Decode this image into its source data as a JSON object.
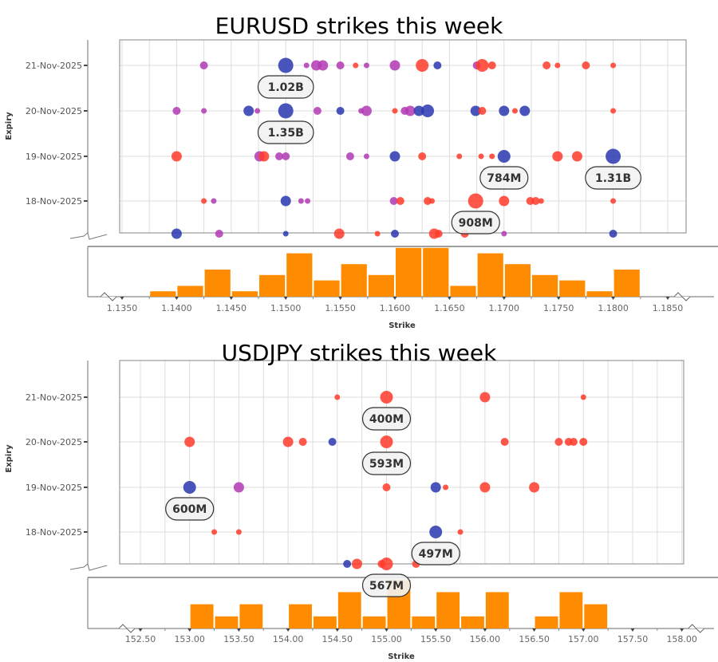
{
  "colors": {
    "blue": "#2a37b0",
    "purple": "#b23ab4",
    "red": "#ff3b2b",
    "histogram": "#ff8c00",
    "label_fill": "#f2f2f2",
    "grid": "#dddddd"
  },
  "chart_data": [
    {
      "type": "scatter",
      "title": "EURUSD strikes this week",
      "xlabel": "Strike",
      "ylabel": "Expiry",
      "y_categories": [
        "18-Nov-2025",
        "19-Nov-2025",
        "20-Nov-2025",
        "21-Nov-2025"
      ],
      "x_ticks": [
        "1.1350",
        "1.1400",
        "1.1450",
        "1.1500",
        "1.1550",
        "1.1600",
        "1.1650",
        "1.1700",
        "1.1750",
        "1.1800",
        "1.1850"
      ],
      "xlim": [
        1.135,
        1.185
      ],
      "grid": true,
      "point_size_scale": "relative 1-5",
      "points": [
        {
          "strike": 1.1425,
          "expiry": "21-Nov-2025",
          "color": "purple",
          "size": 2
        },
        {
          "strike": 1.15,
          "expiry": "21-Nov-2025",
          "color": "blue",
          "size": 5
        },
        {
          "strike": 1.1519,
          "expiry": "21-Nov-2025",
          "color": "purple",
          "size": 1
        },
        {
          "strike": 1.1528,
          "expiry": "21-Nov-2025",
          "color": "purple",
          "size": 3
        },
        {
          "strike": 1.1534,
          "expiry": "21-Nov-2025",
          "color": "purple",
          "size": 3
        },
        {
          "strike": 1.155,
          "expiry": "21-Nov-2025",
          "color": "purple",
          "size": 2
        },
        {
          "strike": 1.1564,
          "expiry": "21-Nov-2025",
          "color": "red",
          "size": 1
        },
        {
          "strike": 1.1574,
          "expiry": "21-Nov-2025",
          "color": "purple",
          "size": 1
        },
        {
          "strike": 1.16,
          "expiry": "21-Nov-2025",
          "color": "purple",
          "size": 3
        },
        {
          "strike": 1.1625,
          "expiry": "21-Nov-2025",
          "color": "red",
          "size": 4
        },
        {
          "strike": 1.1639,
          "expiry": "21-Nov-2025",
          "color": "blue",
          "size": 2
        },
        {
          "strike": 1.1675,
          "expiry": "21-Nov-2025",
          "color": "purple",
          "size": 2
        },
        {
          "strike": 1.168,
          "expiry": "21-Nov-2025",
          "color": "red",
          "size": 4
        },
        {
          "strike": 1.1689,
          "expiry": "21-Nov-2025",
          "color": "red",
          "size": 2
        },
        {
          "strike": 1.1739,
          "expiry": "21-Nov-2025",
          "color": "red",
          "size": 2
        },
        {
          "strike": 1.1749,
          "expiry": "21-Nov-2025",
          "color": "red",
          "size": 1
        },
        {
          "strike": 1.1775,
          "expiry": "21-Nov-2025",
          "color": "red",
          "size": 2
        },
        {
          "strike": 1.18,
          "expiry": "21-Nov-2025",
          "color": "red",
          "size": 1
        },
        {
          "strike": 1.14,
          "expiry": "20-Nov-2025",
          "color": "purple",
          "size": 2
        },
        {
          "strike": 1.1425,
          "expiry": "20-Nov-2025",
          "color": "purple",
          "size": 1
        },
        {
          "strike": 1.1466,
          "expiry": "20-Nov-2025",
          "color": "blue",
          "size": 3
        },
        {
          "strike": 1.1474,
          "expiry": "20-Nov-2025",
          "color": "purple",
          "size": 1
        },
        {
          "strike": 1.15,
          "expiry": "20-Nov-2025",
          "color": "blue",
          "size": 5
        },
        {
          "strike": 1.1529,
          "expiry": "20-Nov-2025",
          "color": "purple",
          "size": 2
        },
        {
          "strike": 1.155,
          "expiry": "20-Nov-2025",
          "color": "blue",
          "size": 2
        },
        {
          "strike": 1.1569,
          "expiry": "20-Nov-2025",
          "color": "purple",
          "size": 1
        },
        {
          "strike": 1.1574,
          "expiry": "20-Nov-2025",
          "color": "purple",
          "size": 3
        },
        {
          "strike": 1.16,
          "expiry": "20-Nov-2025",
          "color": "red",
          "size": 1
        },
        {
          "strike": 1.1609,
          "expiry": "20-Nov-2025",
          "color": "purple",
          "size": 2
        },
        {
          "strike": 1.1614,
          "expiry": "20-Nov-2025",
          "color": "purple",
          "size": 3
        },
        {
          "strike": 1.1622,
          "expiry": "20-Nov-2025",
          "color": "blue",
          "size": 3
        },
        {
          "strike": 1.163,
          "expiry": "20-Nov-2025",
          "color": "blue",
          "size": 4
        },
        {
          "strike": 1.1674,
          "expiry": "20-Nov-2025",
          "color": "blue",
          "size": 3
        },
        {
          "strike": 1.168,
          "expiry": "20-Nov-2025",
          "color": "red",
          "size": 2
        },
        {
          "strike": 1.17,
          "expiry": "20-Nov-2025",
          "color": "blue",
          "size": 3
        },
        {
          "strike": 1.171,
          "expiry": "20-Nov-2025",
          "color": "red",
          "size": 1
        },
        {
          "strike": 1.1719,
          "expiry": "20-Nov-2025",
          "color": "blue",
          "size": 3
        },
        {
          "strike": 1.18,
          "expiry": "20-Nov-2025",
          "color": "red",
          "size": 1
        },
        {
          "strike": 1.14,
          "expiry": "19-Nov-2025",
          "color": "red",
          "size": 3
        },
        {
          "strike": 1.1476,
          "expiry": "19-Nov-2025",
          "color": "purple",
          "size": 3
        },
        {
          "strike": 1.148,
          "expiry": "19-Nov-2025",
          "color": "red",
          "size": 3
        },
        {
          "strike": 1.1494,
          "expiry": "19-Nov-2025",
          "color": "purple",
          "size": 2
        },
        {
          "strike": 1.15,
          "expiry": "19-Nov-2025",
          "color": "purple",
          "size": 2
        },
        {
          "strike": 1.1559,
          "expiry": "19-Nov-2025",
          "color": "purple",
          "size": 2
        },
        {
          "strike": 1.1574,
          "expiry": "19-Nov-2025",
          "color": "purple",
          "size": 1
        },
        {
          "strike": 1.16,
          "expiry": "19-Nov-2025",
          "color": "blue",
          "size": 3
        },
        {
          "strike": 1.1625,
          "expiry": "19-Nov-2025",
          "color": "red",
          "size": 2
        },
        {
          "strike": 1.1659,
          "expiry": "19-Nov-2025",
          "color": "red",
          "size": 1
        },
        {
          "strike": 1.1679,
          "expiry": "19-Nov-2025",
          "color": "red",
          "size": 1
        },
        {
          "strike": 1.1689,
          "expiry": "19-Nov-2025",
          "color": "red",
          "size": 1
        },
        {
          "strike": 1.17,
          "expiry": "19-Nov-2025",
          "color": "blue",
          "size": 4
        },
        {
          "strike": 1.1749,
          "expiry": "19-Nov-2025",
          "color": "red",
          "size": 3
        },
        {
          "strike": 1.1767,
          "expiry": "19-Nov-2025",
          "color": "red",
          "size": 3
        },
        {
          "strike": 1.18,
          "expiry": "19-Nov-2025",
          "color": "blue",
          "size": 5
        },
        {
          "strike": 1.1425,
          "expiry": "18-Nov-2025",
          "color": "red",
          "size": 1
        },
        {
          "strike": 1.1434,
          "expiry": "18-Nov-2025",
          "color": "purple",
          "size": 1
        },
        {
          "strike": 1.15,
          "expiry": "18-Nov-2025",
          "color": "blue",
          "size": 3
        },
        {
          "strike": 1.1514,
          "expiry": "18-Nov-2025",
          "color": "purple",
          "size": 1
        },
        {
          "strike": 1.152,
          "expiry": "18-Nov-2025",
          "color": "purple",
          "size": 1
        },
        {
          "strike": 1.1599,
          "expiry": "18-Nov-2025",
          "color": "purple",
          "size": 2
        },
        {
          "strike": 1.1605,
          "expiry": "18-Nov-2025",
          "color": "red",
          "size": 2
        },
        {
          "strike": 1.163,
          "expiry": "18-Nov-2025",
          "color": "red",
          "size": 2
        },
        {
          "strike": 1.1634,
          "expiry": "18-Nov-2025",
          "color": "red",
          "size": 1
        },
        {
          "strike": 1.1674,
          "expiry": "18-Nov-2025",
          "color": "red",
          "size": 5
        },
        {
          "strike": 1.17,
          "expiry": "18-Nov-2025",
          "color": "red",
          "size": 3
        },
        {
          "strike": 1.1724,
          "expiry": "18-Nov-2025",
          "color": "red",
          "size": 2
        },
        {
          "strike": 1.1729,
          "expiry": "18-Nov-2025",
          "color": "red",
          "size": 2
        },
        {
          "strike": 1.1734,
          "expiry": "18-Nov-2025",
          "color": "red",
          "size": 1
        },
        {
          "strike": 1.18,
          "expiry": "18-Nov-2025",
          "color": "red",
          "size": 1
        },
        {
          "strike": 1.14,
          "expiry": "",
          "color": "blue",
          "size": 3
        },
        {
          "strike": 1.1439,
          "expiry": "",
          "color": "purple",
          "size": 2
        },
        {
          "strike": 1.15,
          "expiry": "",
          "color": "blue",
          "size": 1
        },
        {
          "strike": 1.1549,
          "expiry": "",
          "color": "red",
          "size": 3
        },
        {
          "strike": 1.1584,
          "expiry": "",
          "color": "red",
          "size": 1
        },
        {
          "strike": 1.16,
          "expiry": "",
          "color": "blue",
          "size": 2
        },
        {
          "strike": 1.1636,
          "expiry": "",
          "color": "red",
          "size": 3
        },
        {
          "strike": 1.164,
          "expiry": "",
          "color": "red",
          "size": 2
        },
        {
          "strike": 1.1664,
          "expiry": "",
          "color": "red",
          "size": 2
        },
        {
          "strike": 1.17,
          "expiry": "",
          "color": "purple",
          "size": 1
        },
        {
          "strike": 1.18,
          "expiry": "",
          "color": "blue",
          "size": 2
        }
      ],
      "annotations": [
        {
          "strike": 1.15,
          "expiry": "21-Nov-2025",
          "text": "1.02B"
        },
        {
          "strike": 1.15,
          "expiry": "20-Nov-2025",
          "text": "1.35B"
        },
        {
          "strike": 1.17,
          "expiry": "19-Nov-2025",
          "text": "784M"
        },
        {
          "strike": 1.18,
          "expiry": "19-Nov-2025",
          "text": "1.31B"
        },
        {
          "strike": 1.1674,
          "expiry": "18-Nov-2025",
          "text": "908M"
        }
      ],
      "histogram": {
        "bin_start": 1.1375,
        "bin_width": 0.0025,
        "counts": [
          1,
          2,
          5,
          1,
          4,
          8,
          3,
          6,
          4,
          9,
          9,
          2,
          8,
          6,
          4,
          3,
          1,
          5
        ]
      }
    },
    {
      "type": "scatter",
      "title": "USDJPY strikes this week",
      "xlabel": "Strike",
      "ylabel": "Expiry",
      "y_categories": [
        "18-Nov-2025",
        "19-Nov-2025",
        "20-Nov-2025",
        "21-Nov-2025"
      ],
      "x_ticks": [
        "152.50",
        "153.00",
        "153.50",
        "154.00",
        "154.50",
        "155.00",
        "155.50",
        "156.00",
        "156.50",
        "157.00",
        "157.50",
        "158.00"
      ],
      "xlim": [
        152.5,
        158.0
      ],
      "grid": true,
      "point_size_scale": "relative 1-5",
      "points": [
        {
          "strike": 154.5,
          "expiry": "21-Nov-2025",
          "color": "red",
          "size": 1
        },
        {
          "strike": 155.0,
          "expiry": "21-Nov-2025",
          "color": "red",
          "size": 4
        },
        {
          "strike": 156.0,
          "expiry": "21-Nov-2025",
          "color": "red",
          "size": 3
        },
        {
          "strike": 157.0,
          "expiry": "21-Nov-2025",
          "color": "red",
          "size": 1
        },
        {
          "strike": 153.0,
          "expiry": "20-Nov-2025",
          "color": "red",
          "size": 3
        },
        {
          "strike": 154.0,
          "expiry": "20-Nov-2025",
          "color": "red",
          "size": 3
        },
        {
          "strike": 154.15,
          "expiry": "20-Nov-2025",
          "color": "red",
          "size": 2
        },
        {
          "strike": 154.45,
          "expiry": "20-Nov-2025",
          "color": "blue",
          "size": 2
        },
        {
          "strike": 155.0,
          "expiry": "20-Nov-2025",
          "color": "red",
          "size": 4
        },
        {
          "strike": 156.2,
          "expiry": "20-Nov-2025",
          "color": "red",
          "size": 2
        },
        {
          "strike": 156.75,
          "expiry": "20-Nov-2025",
          "color": "red",
          "size": 2
        },
        {
          "strike": 156.85,
          "expiry": "20-Nov-2025",
          "color": "red",
          "size": 2
        },
        {
          "strike": 156.9,
          "expiry": "20-Nov-2025",
          "color": "red",
          "size": 2
        },
        {
          "strike": 157.0,
          "expiry": "20-Nov-2025",
          "color": "red",
          "size": 2
        },
        {
          "strike": 153.0,
          "expiry": "19-Nov-2025",
          "color": "blue",
          "size": 4
        },
        {
          "strike": 153.5,
          "expiry": "19-Nov-2025",
          "color": "purple",
          "size": 3
        },
        {
          "strike": 155.0,
          "expiry": "19-Nov-2025",
          "color": "red",
          "size": 2
        },
        {
          "strike": 155.5,
          "expiry": "19-Nov-2025",
          "color": "blue",
          "size": 3
        },
        {
          "strike": 155.6,
          "expiry": "19-Nov-2025",
          "color": "red",
          "size": 1
        },
        {
          "strike": 156.0,
          "expiry": "19-Nov-2025",
          "color": "red",
          "size": 3
        },
        {
          "strike": 156.5,
          "expiry": "19-Nov-2025",
          "color": "red",
          "size": 3
        },
        {
          "strike": 153.25,
          "expiry": "18-Nov-2025",
          "color": "red",
          "size": 1
        },
        {
          "strike": 153.5,
          "expiry": "18-Nov-2025",
          "color": "red",
          "size": 1
        },
        {
          "strike": 155.5,
          "expiry": "18-Nov-2025",
          "color": "blue",
          "size": 4
        },
        {
          "strike": 155.75,
          "expiry": "18-Nov-2025",
          "color": "red",
          "size": 1
        },
        {
          "strike": 154.6,
          "expiry": "",
          "color": "blue",
          "size": 2
        },
        {
          "strike": 154.7,
          "expiry": "",
          "color": "red",
          "size": 3
        },
        {
          "strike": 154.95,
          "expiry": "",
          "color": "red",
          "size": 2
        },
        {
          "strike": 155.0,
          "expiry": "",
          "color": "red",
          "size": 4
        },
        {
          "strike": 155.3,
          "expiry": "",
          "color": "red",
          "size": 2
        }
      ],
      "annotations": [
        {
          "strike": 155.0,
          "expiry": "21-Nov-2025",
          "text": "400M"
        },
        {
          "strike": 155.0,
          "expiry": "20-Nov-2025",
          "text": "593M"
        },
        {
          "strike": 153.0,
          "expiry": "19-Nov-2025",
          "text": "600M"
        },
        {
          "strike": 155.5,
          "expiry": "18-Nov-2025",
          "text": "497M"
        },
        {
          "strike": 155.0,
          "expiry": "",
          "text": "567M"
        }
      ],
      "histogram": {
        "bin_start": 153.0,
        "bin_width": 0.25,
        "counts": [
          2,
          1,
          2,
          0,
          2,
          1,
          3,
          1,
          4,
          1,
          3,
          1,
          3,
          0,
          1,
          3,
          2
        ]
      }
    }
  ]
}
